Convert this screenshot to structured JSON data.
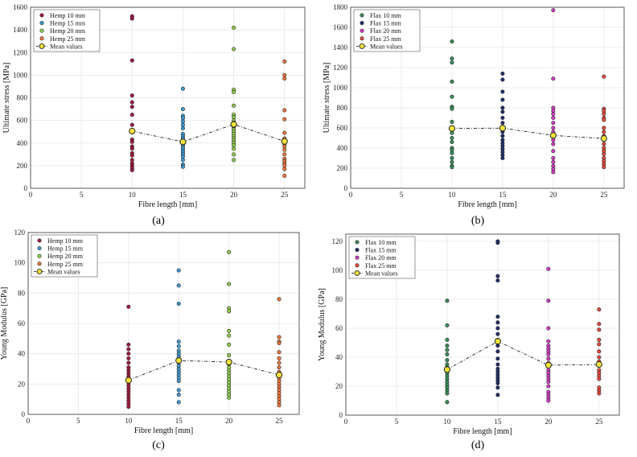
{
  "chart_data": [
    {
      "type": "scatter",
      "panel_label": "(a)",
      "xlabel": "Fibre length [mm]",
      "ylabel": "Ultimate stress [MPa]",
      "xlim": [
        0,
        27
      ],
      "ylim": [
        0,
        1600
      ],
      "xticks": [
        0,
        5,
        10,
        15,
        20,
        25
      ],
      "yticks": [
        0,
        200,
        400,
        600,
        800,
        1000,
        1200,
        1400,
        1600
      ],
      "legend_position": "top-left",
      "series": [
        {
          "name": "Hemp 10 mm",
          "x": 10,
          "color": "#a3183d",
          "values": [
            1520,
            1500,
            1130,
            820,
            760,
            720,
            650,
            560,
            500,
            430,
            410,
            370,
            350,
            310,
            290,
            250,
            220,
            200,
            180,
            160
          ]
        },
        {
          "name": "Hemp 15 mm",
          "x": 15,
          "color": "#3d9ad1",
          "values": [
            880,
            700,
            640,
            620,
            590,
            560,
            530,
            480,
            460,
            440,
            420,
            400,
            380,
            360,
            340,
            320,
            300,
            280,
            250,
            210,
            190
          ]
        },
        {
          "name": "Hemp 20 mm",
          "x": 20,
          "color": "#8fcf4d",
          "values": [
            1420,
            1230,
            870,
            850,
            730,
            650,
            630,
            600,
            580,
            560,
            540,
            520,
            500,
            480,
            460,
            440,
            420,
            400,
            380,
            350,
            300,
            250
          ]
        },
        {
          "name": "Hemp 25 mm",
          "x": 25,
          "color": "#f0773c",
          "values": [
            1120,
            1000,
            970,
            690,
            610,
            490,
            440,
            420,
            390,
            370,
            340,
            300,
            260,
            240,
            220,
            200,
            170,
            110
          ]
        }
      ],
      "mean": {
        "name": "Mean values",
        "x": [
          10,
          15,
          20,
          25
        ],
        "values": [
          505,
          410,
          565,
          415
        ]
      }
    },
    {
      "type": "scatter",
      "panel_label": "(b)",
      "xlabel": "Fibre length [mm]",
      "ylabel": "Ultimate stress [MPa]",
      "xlim": [
        0,
        27
      ],
      "ylim": [
        0,
        1800
      ],
      "xticks": [
        0,
        5,
        10,
        15,
        20,
        25
      ],
      "yticks": [
        0,
        200,
        400,
        600,
        800,
        1000,
        1200,
        1400,
        1600,
        1800
      ],
      "legend_position": "top-left",
      "series": [
        {
          "name": "Flax 10 mm",
          "x": 10,
          "color": "#3a8f5a",
          "values": [
            1460,
            1290,
            1250,
            1060,
            910,
            810,
            790,
            660,
            600,
            580,
            550,
            500,
            460,
            400,
            380,
            350,
            300,
            260,
            220,
            210
          ]
        },
        {
          "name": "Flax 15 mm",
          "x": 15,
          "color": "#1f2f6b",
          "values": [
            1140,
            1080,
            960,
            880,
            800,
            760,
            700,
            650,
            600,
            560,
            520,
            480,
            450,
            420,
            390,
            360,
            330,
            300
          ]
        },
        {
          "name": "Flax 20 mm",
          "x": 20,
          "color": "#d63cc4",
          "values": [
            1770,
            1090,
            800,
            770,
            740,
            700,
            650,
            600,
            560,
            520,
            480,
            440,
            370,
            300,
            260,
            220,
            190,
            160
          ]
        },
        {
          "name": "Flax 25 mm",
          "x": 25,
          "color": "#e8483c",
          "values": [
            1110,
            790,
            770,
            740,
            700,
            680,
            600,
            560,
            520,
            480,
            440,
            400,
            370,
            340,
            300,
            270,
            240,
            210
          ]
        }
      ],
      "mean": {
        "name": "Mean values",
        "x": [
          10,
          15,
          20,
          25
        ],
        "values": [
          595,
          598,
          525,
          495
        ]
      }
    },
    {
      "type": "scatter",
      "panel_label": "(c)",
      "xlabel": "Fibre length [mm]",
      "ylabel": "Young Modulus [GPa]",
      "xlim": [
        0,
        27
      ],
      "ylim": [
        0,
        120
      ],
      "xticks": [
        0,
        5,
        10,
        15,
        20,
        25
      ],
      "yticks": [
        0,
        20,
        40,
        60,
        80,
        100,
        120
      ],
      "legend_position": "top-left",
      "series": [
        {
          "name": "Hemp 10 mm",
          "x": 10,
          "color": "#a3183d",
          "values": [
            71,
            46,
            43,
            40,
            37,
            34,
            31,
            29,
            27,
            25,
            23,
            21,
            19,
            17,
            15,
            13,
            11,
            9,
            7,
            5
          ]
        },
        {
          "name": "Hemp 15 mm",
          "x": 15,
          "color": "#3d9ad1",
          "values": [
            95,
            85,
            73,
            48,
            45,
            42,
            40,
            38,
            36,
            34,
            32,
            30,
            28,
            26,
            24,
            22,
            16,
            13,
            8
          ]
        },
        {
          "name": "Hemp 20 mm",
          "x": 20,
          "color": "#8fcf4d",
          "values": [
            107,
            86,
            70,
            68,
            55,
            52,
            46,
            39,
            35,
            33,
            31,
            29,
            27,
            25,
            23,
            21,
            19,
            17,
            15,
            13,
            11
          ]
        },
        {
          "name": "Hemp 25 mm",
          "x": 25,
          "color": "#f0773c",
          "values": [
            76,
            51,
            48,
            47,
            41,
            37,
            34,
            31,
            28,
            26,
            24,
            22,
            20,
            18,
            16,
            14,
            12,
            10,
            8,
            6
          ]
        }
      ],
      "mean": {
        "name": "Mean values",
        "x": [
          10,
          15,
          20,
          25
        ],
        "values": [
          22.5,
          35.5,
          34.5,
          26
        ]
      }
    },
    {
      "type": "scatter",
      "panel_label": "(d)",
      "xlabel": "Fibre length [mm]",
      "ylabel": "Young Modulus [GPa]",
      "xlim": [
        0,
        27
      ],
      "ylim": [
        0,
        125
      ],
      "xticks": [
        0,
        5,
        10,
        15,
        20,
        25
      ],
      "yticks": [
        0,
        20,
        40,
        60,
        80,
        100,
        120
      ],
      "legend_position": "top-left",
      "series": [
        {
          "name": "Flax 10 mm",
          "x": 10,
          "color": "#3a8f5a",
          "values": [
            79,
            62,
            52,
            48,
            45,
            42,
            38,
            35,
            33,
            31,
            29,
            27,
            25,
            23,
            21,
            19,
            17,
            15,
            9
          ]
        },
        {
          "name": "Flax 15 mm",
          "x": 15,
          "color": "#1f2f6b",
          "values": [
            120,
            119,
            96,
            93,
            68,
            64,
            60,
            56,
            52,
            48,
            44,
            39,
            35,
            32,
            30,
            28,
            26,
            24,
            22,
            19,
            14
          ]
        },
        {
          "name": "Flax 20 mm",
          "x": 20,
          "color": "#d63cc4",
          "values": [
            101,
            79,
            60,
            51,
            48,
            46,
            44,
            42,
            39,
            36,
            34,
            31,
            29,
            27,
            25,
            23,
            20,
            16,
            14,
            12,
            10
          ]
        },
        {
          "name": "Flax 25 mm",
          "x": 25,
          "color": "#e8483c",
          "values": [
            73,
            63,
            59,
            52,
            49,
            44,
            40,
            37,
            34,
            31,
            29,
            27,
            25,
            19,
            17,
            15
          ]
        }
      ],
      "mean": {
        "name": "Mean values",
        "x": [
          10,
          15,
          20,
          25
        ],
        "values": [
          31.5,
          51,
          34.5,
          35
        ]
      }
    }
  ]
}
